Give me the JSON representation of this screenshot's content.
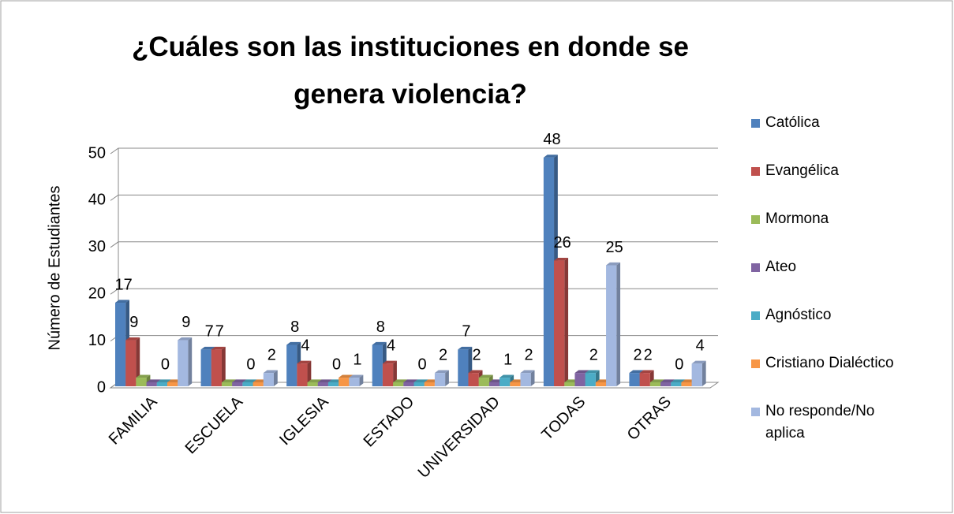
{
  "chart_data": {
    "type": "bar3d",
    "title": "¿Cuáles son las instituciones en donde se genera violencia?",
    "y_label": "Número de Estudiantes",
    "categories": [
      "FAMILIA",
      "ESCUELA",
      "IGLESIA",
      "ESTADO",
      "UNIVERSIDAD",
      "TODAS",
      "OTRAS"
    ],
    "ylim": [
      0,
      50
    ],
    "yticks": [
      0,
      10,
      20,
      30,
      40,
      50
    ],
    "grid": true,
    "legend": "right",
    "series": [
      {
        "name": "Católica",
        "color": "#4f81bd",
        "values": [
          17,
          7,
          8,
          8,
          7,
          48,
          2
        ],
        "value_labels": [
          "17",
          "7",
          "8",
          "8",
          "7",
          "48",
          "2"
        ]
      },
      {
        "name": "Evangélica",
        "color": "#c0504d",
        "values": [
          9,
          7,
          4,
          4,
          2,
          26,
          2
        ],
        "value_labels": [
          "9",
          "7",
          "4",
          "4",
          "2",
          "26",
          "2"
        ]
      },
      {
        "name": "Mormona",
        "color": "#9bbb59",
        "values": [
          1,
          0,
          0,
          0,
          1,
          0,
          0
        ],
        "value_labels": [
          null,
          null,
          null,
          null,
          null,
          null,
          null
        ]
      },
      {
        "name": "Ateo",
        "color": "#8064a2",
        "values": [
          0,
          0,
          0,
          0,
          0,
          2,
          0
        ],
        "value_labels": [
          null,
          null,
          null,
          null,
          null,
          null,
          null
        ]
      },
      {
        "name": "Agnóstico",
        "color": "#4bacc6",
        "values": [
          0,
          0,
          0,
          0,
          1,
          2,
          0
        ],
        "value_labels": [
          "0",
          "0",
          "0",
          "0",
          "1",
          "2",
          "0"
        ]
      },
      {
        "name": "Cristiano Dialéctico",
        "color": "#f79646",
        "values": [
          0,
          0,
          1,
          0,
          0,
          0,
          0
        ],
        "value_labels": [
          null,
          null,
          null,
          null,
          null,
          null,
          null
        ]
      },
      {
        "name": "No responde/No aplica",
        "color": "#a3b8e0",
        "values": [
          9,
          2,
          1,
          2,
          2,
          25,
          4
        ],
        "value_labels": [
          "9",
          "2",
          "1",
          "2",
          "2",
          "25",
          "4"
        ]
      }
    ]
  }
}
